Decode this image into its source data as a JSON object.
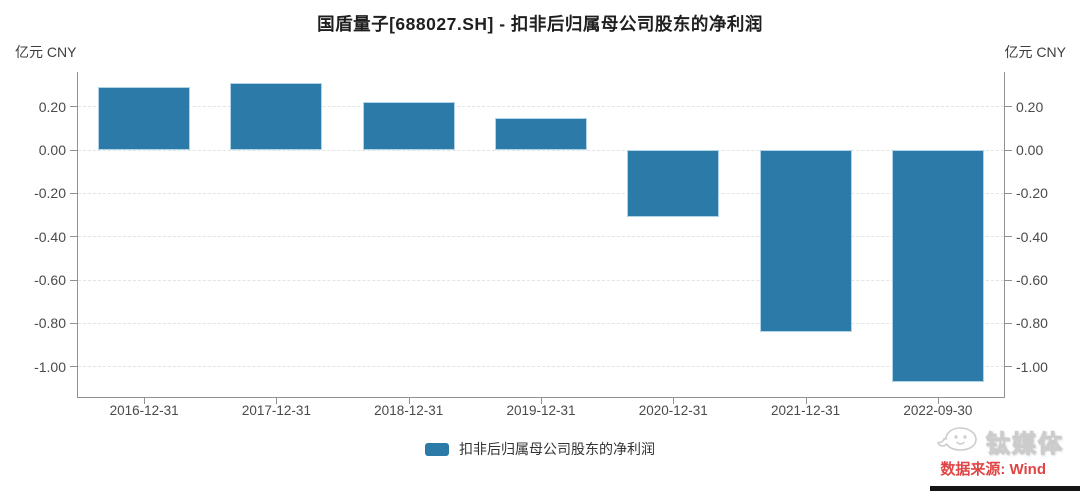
{
  "title": "国盾量子[688027.SH] - 扣非后归属母公司股东的净利润",
  "axis": {
    "unit_left": "亿元 CNY",
    "unit_right": "亿元 CNY"
  },
  "legend": {
    "label": "扣非后归属母公司股东的净利润"
  },
  "watermark": {
    "brand": "钛媒体"
  },
  "source": {
    "label": "数据来源: Wind"
  },
  "colors": {
    "bar": "#2b7aa7",
    "bar_border": "#aed4e6",
    "axis": "#919191",
    "grid": "#e3e3e3",
    "tick_text": "#4a4a4a",
    "title_text": "#1f1f1f",
    "source_red": "#e04545"
  },
  "chart_data": {
    "type": "bar",
    "title": "国盾量子[688027.SH] - 扣非后归属母公司股东的净利润",
    "unit": "亿元 CNY",
    "series_name": "扣非后归属母公司股东的净利润",
    "categories": [
      "2016-12-31",
      "2017-12-31",
      "2018-12-31",
      "2019-12-31",
      "2020-12-31",
      "2021-12-31",
      "2022-09-30"
    ],
    "values": [
      0.29,
      0.31,
      0.22,
      0.15,
      -0.31,
      -0.84,
      -1.07
    ],
    "ytick_labels": [
      "0.20",
      "0.00",
      "-0.20",
      "-0.40",
      "-0.60",
      "-0.80",
      "-1.00"
    ],
    "ylim": [
      -1.14,
      0.36
    ],
    "grid": "horizontal-dashed",
    "legend_position": "bottom-center",
    "dual_y_axis": true
  }
}
